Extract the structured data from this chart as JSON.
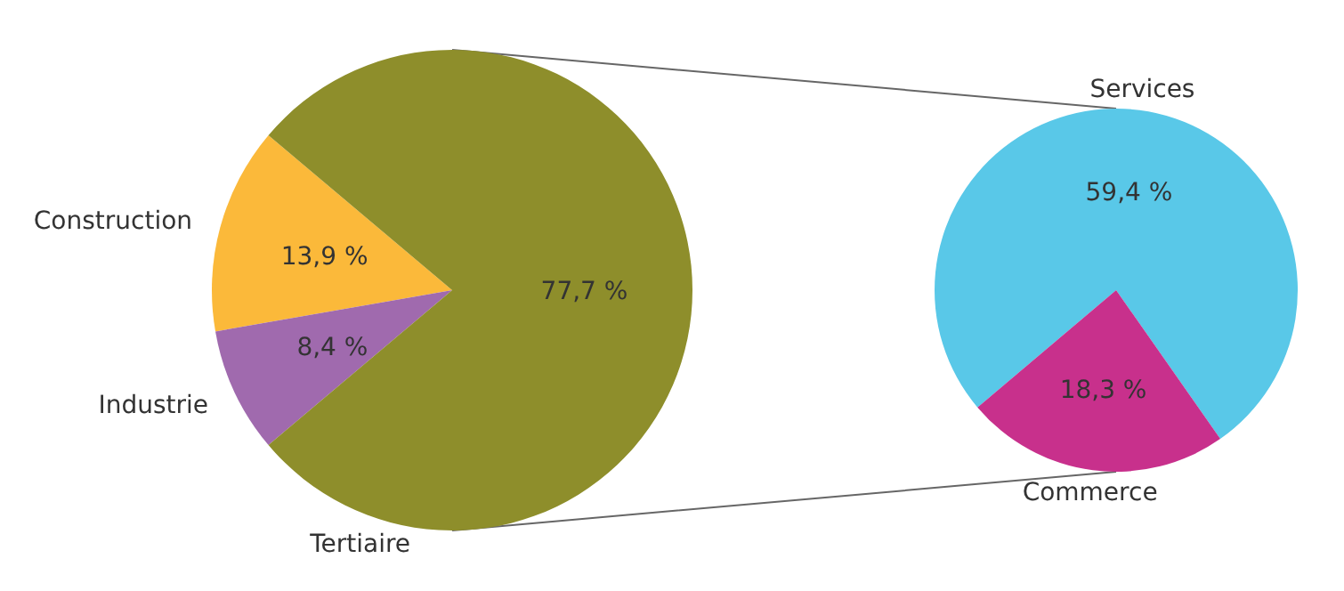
{
  "chart_data": [
    {
      "type": "pie",
      "categories": [
        "Construction",
        "Industrie",
        "Tertiaire"
      ],
      "values": [
        13.9,
        8.4,
        77.7
      ],
      "colors": [
        "#fbb93a",
        "#a06aae",
        "#8e8e2b"
      ],
      "value_labels": [
        "13,9 %",
        "8,4 %",
        "77,7 %"
      ]
    },
    {
      "type": "pie",
      "categories": [
        "Services",
        "Commerce"
      ],
      "values": [
        59.4,
        18.3
      ],
      "colors": [
        "#59c8e8",
        "#c8308c"
      ],
      "value_labels": [
        "59,4 %",
        "18,3 %"
      ]
    }
  ]
}
